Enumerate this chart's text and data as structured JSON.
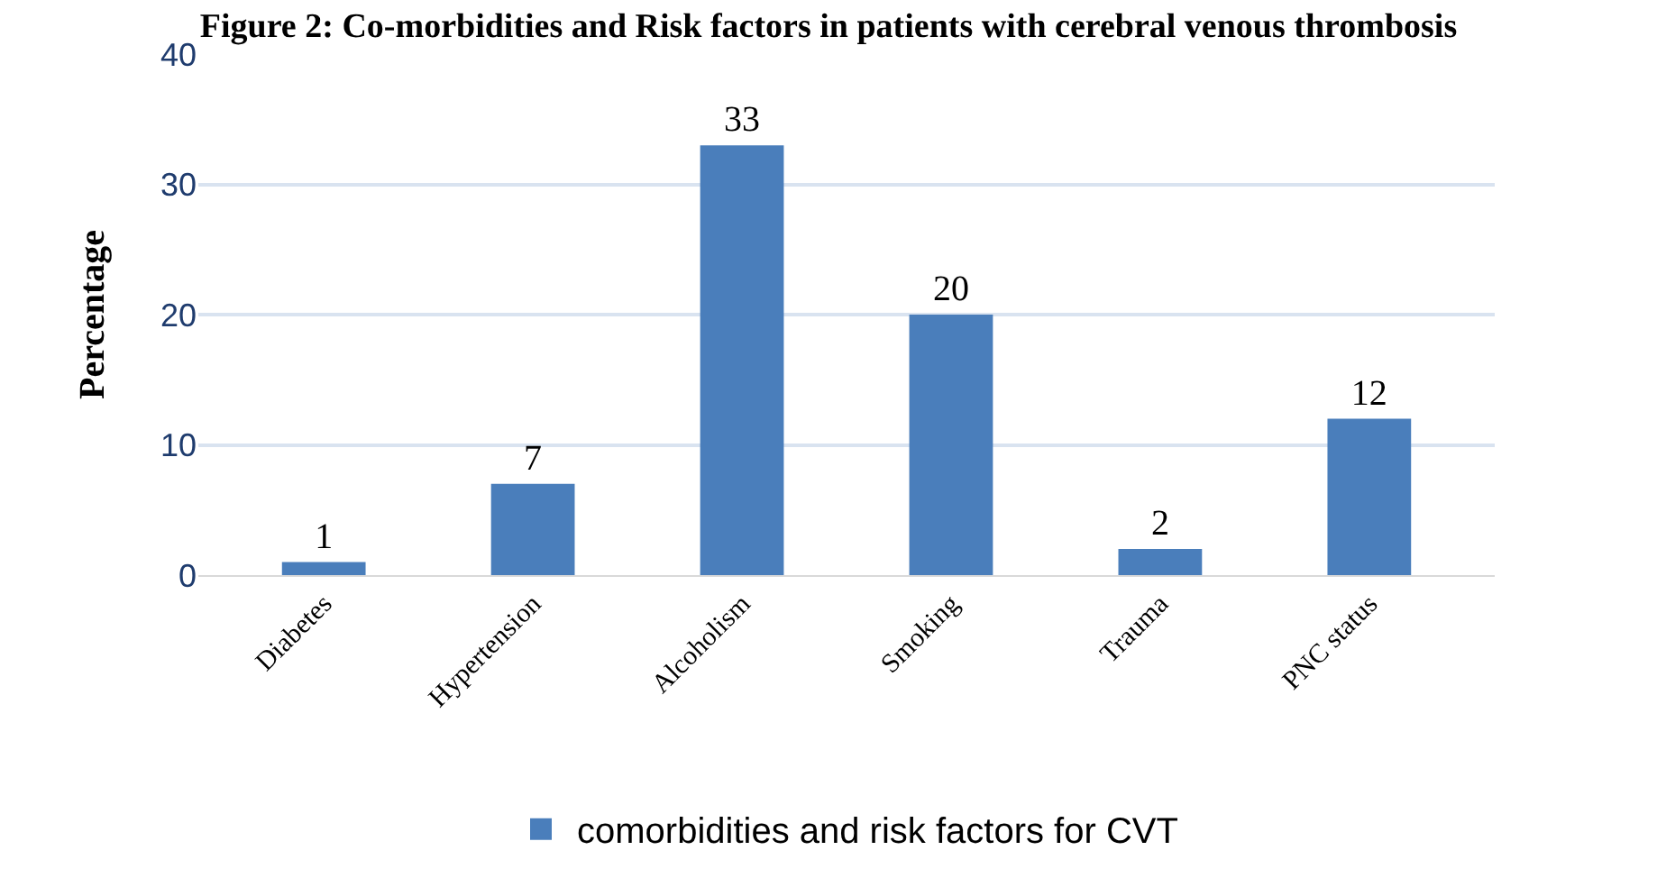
{
  "chart_data": {
    "type": "bar",
    "title": "Figure 2: Co-morbidities and Risk factors in patients with cerebral venous thrombosis",
    "ylabel": "Percentage",
    "categories": [
      "Diabetes",
      "Hypertension",
      "Alcoholism",
      "Smoking",
      "Trauma",
      "PNC status"
    ],
    "series": [
      {
        "name": "comorbidities and risk factors for CVT",
        "color": "#4a7ebb",
        "values": [
          1,
          7,
          33,
          20,
          2,
          12
        ]
      }
    ],
    "ylim": [
      0,
      40
    ],
    "yticks": [
      0,
      10,
      20,
      30,
      40
    ],
    "grid": "y",
    "legend": "bottom",
    "data_labels": true
  }
}
